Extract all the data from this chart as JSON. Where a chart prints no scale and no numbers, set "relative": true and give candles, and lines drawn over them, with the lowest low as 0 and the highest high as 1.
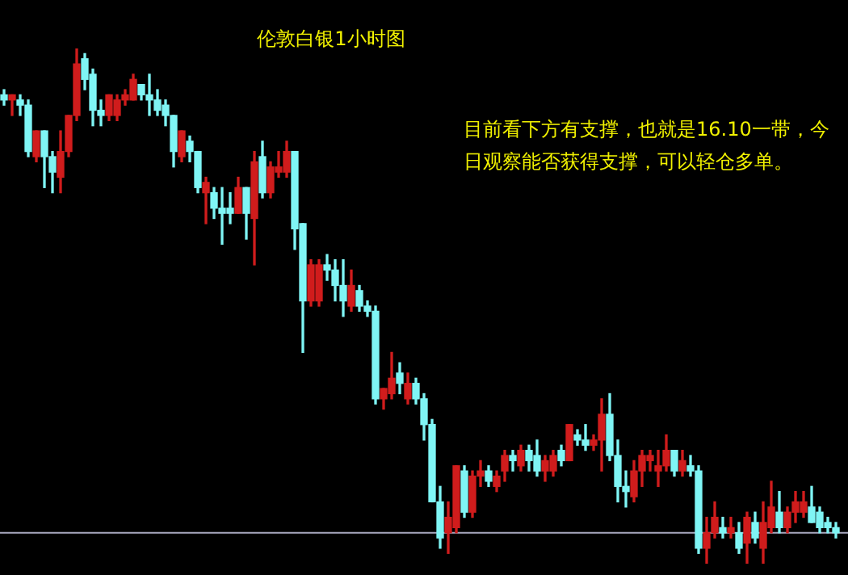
{
  "chart_data": {
    "type": "candlestick",
    "title": "伦敦白银1小时图",
    "annotations": [
      "目前看下方有支撑，也就是16.10一带，今日观察能否获得支撑，可以轻仓多单。"
    ],
    "relative": true,
    "categories": [
      null,
      null,
      null,
      null,
      null,
      null,
      null,
      null,
      null,
      null,
      null,
      null,
      null,
      null,
      null,
      null,
      null,
      null,
      null,
      null,
      null,
      null,
      null,
      null,
      null,
      null,
      null,
      null,
      null,
      null,
      null,
      null,
      null,
      null,
      null,
      null,
      null,
      null,
      null,
      null,
      null,
      null,
      null,
      null,
      null,
      null,
      null,
      null,
      null,
      null,
      null,
      null,
      null,
      null,
      null,
      null,
      null,
      null,
      null,
      null,
      null,
      null,
      null,
      null,
      null,
      null,
      null,
      null,
      null,
      null,
      null,
      null,
      null,
      null,
      null,
      null,
      null,
      null,
      null,
      null,
      null,
      null,
      null,
      null,
      null,
      null,
      null,
      null,
      null,
      null,
      null,
      null,
      null,
      null,
      null,
      null,
      null,
      null,
      null,
      null,
      null,
      null,
      null,
      null
    ],
    "ohlc": [
      [
        0.91,
        0.92,
        0.89,
        0.9
      ],
      [
        0.9,
        0.91,
        0.87,
        0.91
      ],
      [
        0.9,
        0.91,
        0.87,
        0.89
      ],
      [
        0.89,
        0.9,
        0.79,
        0.8
      ],
      [
        0.79,
        0.84,
        0.78,
        0.84
      ],
      [
        0.84,
        0.84,
        0.73,
        0.79
      ],
      [
        0.79,
        0.8,
        0.72,
        0.76
      ],
      [
        0.75,
        0.84,
        0.72,
        0.8
      ],
      [
        0.8,
        0.87,
        0.79,
        0.87
      ],
      [
        0.87,
        1,
        0.86,
        0.97
      ],
      [
        0.98,
        0.99,
        0.92,
        0.94
      ],
      [
        0.95,
        0.96,
        0.85,
        0.88
      ],
      [
        0.88,
        0.9,
        0.85,
        0.87
      ],
      [
        0.87,
        0.91,
        0.86,
        0.91
      ],
      [
        0.87,
        0.91,
        0.86,
        0.9
      ],
      [
        0.9,
        0.92,
        0.89,
        0.91
      ],
      [
        0.9,
        0.95,
        0.9,
        0.94
      ],
      [
        0.93,
        0.93,
        0.9,
        0.91
      ],
      [
        0.91,
        0.95,
        0.87,
        0.9
      ],
      [
        0.9,
        0.92,
        0.87,
        0.88
      ],
      [
        0.89,
        0.9,
        0.85,
        0.87
      ],
      [
        0.87,
        0.87,
        0.77,
        0.8
      ],
      [
        0.79,
        0.84,
        0.78,
        0.84
      ],
      [
        0.82,
        0.83,
        0.78,
        0.8
      ],
      [
        0.8,
        0.8,
        0.72,
        0.73
      ],
      [
        0.72,
        0.75,
        0.66,
        0.74
      ],
      [
        0.72,
        0.73,
        0.67,
        0.69
      ],
      [
        0.69,
        0.73,
        0.62,
        0.68
      ],
      [
        0.69,
        0.72,
        0.66,
        0.68
      ],
      [
        0.68,
        0.75,
        0.68,
        0.73
      ],
      [
        0.73,
        0.73,
        0.63,
        0.68
      ],
      [
        0.67,
        0.8,
        0.58,
        0.78
      ],
      [
        0.79,
        0.82,
        0.71,
        0.72
      ],
      [
        0.72,
        0.78,
        0.71,
        0.77
      ],
      [
        0.76,
        0.8,
        0.75,
        0.77
      ],
      [
        0.76,
        0.82,
        0.75,
        0.8
      ],
      [
        0.8,
        0.8,
        0.61,
        0.65
      ],
      [
        0.66,
        0.66,
        0.41,
        0.51
      ],
      [
        0.51,
        0.59,
        0.5,
        0.58
      ],
      [
        0.51,
        0.59,
        0.5,
        0.58
      ],
      [
        0.58,
        0.6,
        0.55,
        0.57
      ],
      [
        0.57,
        0.59,
        0.51,
        0.54
      ],
      [
        0.54,
        0.59,
        0.48,
        0.51
      ],
      [
        0.5,
        0.57,
        0.49,
        0.54
      ],
      [
        0.53,
        0.54,
        0.49,
        0.5
      ],
      [
        0.5,
        0.51,
        0.48,
        0.49
      ],
      [
        0.49,
        0.5,
        0.31,
        0.32
      ],
      [
        0.32,
        0.34,
        0.3,
        0.34
      ],
      [
        0.33,
        0.41,
        0.32,
        0.36
      ],
      [
        0.37,
        0.39,
        0.33,
        0.35
      ],
      [
        0.32,
        0.37,
        0.31,
        0.35
      ],
      [
        0.35,
        0.36,
        0.31,
        0.32
      ],
      [
        0.32,
        0.33,
        0.24,
        0.27
      ],
      [
        0.27,
        0.28,
        0.12,
        0.12
      ],
      [
        0.12,
        0.15,
        0.03,
        0.05
      ],
      [
        0.06,
        0.12,
        0.02,
        0.09
      ],
      [
        0.07,
        0.19,
        0.06,
        0.19
      ],
      [
        0.18,
        0.19,
        0.09,
        0.1
      ],
      [
        0.1,
        0.18,
        0.09,
        0.17
      ],
      [
        0.17,
        0.2,
        0.15,
        0.18
      ],
      [
        0.18,
        0.19,
        0.15,
        0.16
      ],
      [
        0.15,
        0.18,
        0.14,
        0.17
      ],
      [
        0.18,
        0.22,
        0.16,
        0.21
      ],
      [
        0.21,
        0.22,
        0.18,
        0.2
      ],
      [
        0.19,
        0.23,
        0.18,
        0.22
      ],
      [
        0.22,
        0.23,
        0.18,
        0.2
      ],
      [
        0.21,
        0.24,
        0.17,
        0.18
      ],
      [
        0.18,
        0.21,
        0.16,
        0.2
      ],
      [
        0.18,
        0.22,
        0.17,
        0.21
      ],
      [
        0.22,
        0.23,
        0.19,
        0.2
      ],
      [
        0.2,
        0.27,
        0.2,
        0.27
      ],
      [
        0.25,
        0.26,
        0.23,
        0.24
      ],
      [
        0.24,
        0.27,
        0.22,
        0.23
      ],
      [
        0.23,
        0.25,
        0.22,
        0.24
      ],
      [
        0.24,
        0.32,
        0.18,
        0.29
      ],
      [
        0.29,
        0.33,
        0.2,
        0.21
      ],
      [
        0.21,
        0.24,
        0.12,
        0.15
      ],
      [
        0.15,
        0.18,
        0.11,
        0.14
      ],
      [
        0.13,
        0.2,
        0.12,
        0.18
      ],
      [
        0.18,
        0.22,
        0.15,
        0.21
      ],
      [
        0.2,
        0.22,
        0.18,
        0.21
      ],
      [
        0.18,
        0.22,
        0.15,
        0.19
      ],
      [
        0.19,
        0.25,
        0.18,
        0.22
      ],
      [
        0.22,
        0.22,
        0.17,
        0.18
      ],
      [
        0.18,
        0.22,
        0.17,
        0.2
      ],
      [
        0.19,
        0.21,
        0.17,
        0.18
      ],
      [
        0.18,
        0.19,
        0.02,
        0.03
      ],
      [
        0.03,
        0.09,
        0,
        0.06
      ],
      [
        0.06,
        0.12,
        0.05,
        0.09
      ],
      [
        0.07,
        0.09,
        0.05,
        0.06
      ],
      [
        0.06,
        0.09,
        0.05,
        0.07
      ],
      [
        0.06,
        0.08,
        0.02,
        0.03
      ],
      [
        0.04,
        0.1,
        0,
        0.09
      ],
      [
        0.08,
        0.1,
        0.04,
        0.05
      ],
      [
        0.03,
        0.12,
        0,
        0.08
      ],
      [
        0.07,
        0.16,
        0.06,
        0.11
      ],
      [
        0.1,
        0.14,
        0.06,
        0.07
      ],
      [
        0.07,
        0.11,
        0.06,
        0.1
      ],
      [
        0.1,
        0.14,
        0.08,
        0.12
      ],
      [
        0.1,
        0.14,
        0.09,
        0.12
      ],
      [
        0.11,
        0.15,
        0.08,
        0.08
      ],
      [
        0.1,
        0.11,
        0.06,
        0.07
      ],
      [
        0.08,
        0.09,
        0.06,
        0.07
      ],
      [
        0.07,
        0.08,
        0.05,
        0.06
      ]
    ],
    "colors": [
      "#7ff5f5",
      "#d01c1c",
      "#7ff5f5",
      "#7ff5f5",
      "#d01c1c",
      "#7ff5f5",
      "#7ff5f5",
      "#d01c1c",
      "#d01c1c",
      "#d01c1c",
      "#7ff5f5",
      "#7ff5f5",
      "#7ff5f5",
      "#d01c1c",
      "#d01c1c",
      "#d01c1c",
      "#d01c1c",
      "#7ff5f5",
      "#7ff5f5",
      "#7ff5f5",
      "#7ff5f5",
      "#7ff5f5",
      "#d01c1c",
      "#7ff5f5",
      "#7ff5f5",
      "#d01c1c",
      "#7ff5f5",
      "#7ff5f5",
      "#7ff5f5",
      "#d01c1c",
      "#7ff5f5",
      "#d01c1c",
      "#7ff5f5",
      "#d01c1c",
      "#d01c1c",
      "#d01c1c",
      "#7ff5f5",
      "#7ff5f5",
      "#d01c1c",
      "#d01c1c",
      "#7ff5f5",
      "#7ff5f5",
      "#7ff5f5",
      "#d01c1c",
      "#7ff5f5",
      "#7ff5f5",
      "#7ff5f5",
      "#d01c1c",
      "#d01c1c",
      "#7ff5f5",
      "#d01c1c",
      "#7ff5f5",
      "#7ff5f5",
      "#7ff5f5",
      "#7ff5f5",
      "#d01c1c",
      "#d01c1c",
      "#7ff5f5",
      "#d01c1c",
      "#d01c1c",
      "#7ff5f5",
      "#d01c1c",
      "#d01c1c",
      "#7ff5f5",
      "#d01c1c",
      "#7ff5f5",
      "#7ff5f5",
      "#d01c1c",
      "#d01c1c",
      "#7ff5f5",
      "#d01c1c",
      "#7ff5f5",
      "#7ff5f5",
      "#d01c1c",
      "#d01c1c",
      "#7ff5f5",
      "#7ff5f5",
      "#7ff5f5",
      "#d01c1c",
      "#d01c1c",
      "#d01c1c",
      "#d01c1c",
      "#d01c1c",
      "#7ff5f5",
      "#d01c1c",
      "#7ff5f5",
      "#7ff5f5",
      "#d01c1c",
      "#d01c1c",
      "#7ff5f5",
      "#d01c1c",
      "#7ff5f5",
      "#d01c1c",
      "#7ff5f5",
      "#d01c1c",
      "#d01c1c",
      "#7ff5f5",
      "#d01c1c",
      "#d01c1c",
      "#d01c1c",
      "#7ff5f5",
      "#7ff5f5",
      "#7ff5f5",
      "#7ff5f5"
    ],
    "ref_lines": [
      {
        "axis": "y",
        "value": 0.06,
        "color": "#a8a8c0"
      }
    ]
  }
}
